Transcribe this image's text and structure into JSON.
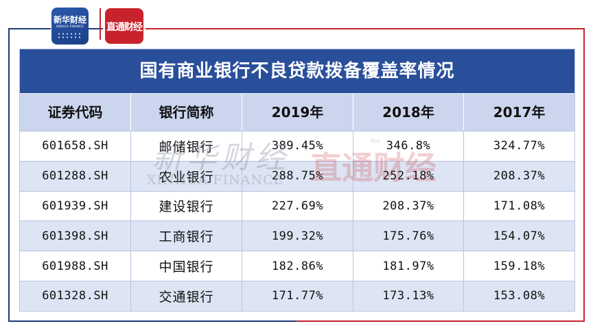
{
  "logos": {
    "xinhua_name": "新华财经",
    "xinhua_sub": "XINHUA FINANCE",
    "zhitou_name": "直通财经"
  },
  "watermark": {
    "xinhua_cn": "新华财经",
    "xinhua_en": "XINHUA FINANCE",
    "zhitou_cn": "直通财经",
    "zhitou_small": "Bre"
  },
  "chart_data": {
    "type": "table",
    "title": "国有商业银行不良贷款拨备覆盖率情况",
    "columns": [
      "证券代码",
      "银行简称",
      "2019年",
      "2018年",
      "2017年"
    ],
    "rows": [
      [
        "601658.SH",
        "邮储银行",
        "389.45%",
        "346.8%",
        "324.77%"
      ],
      [
        "601288.SH",
        "农业银行",
        "288.75%",
        "252.18%",
        "208.37%"
      ],
      [
        "601939.SH",
        "建设银行",
        "227.69%",
        "208.37%",
        "171.08%"
      ],
      [
        "601398.SH",
        "工商银行",
        "199.32%",
        "175.76%",
        "154.07%"
      ],
      [
        "601988.SH",
        "中国银行",
        "182.86%",
        "181.97%",
        "159.18%"
      ],
      [
        "601328.SH",
        "交通银行",
        "171.77%",
        "173.13%",
        "153.08%"
      ]
    ]
  },
  "colors": {
    "title_bg": "#2a4f9a",
    "header_bg": "#cbd6ee",
    "alt_row_bg": "#dde4f3",
    "brand_red": "#c8232c",
    "brand_blue": "#1f3a78"
  }
}
